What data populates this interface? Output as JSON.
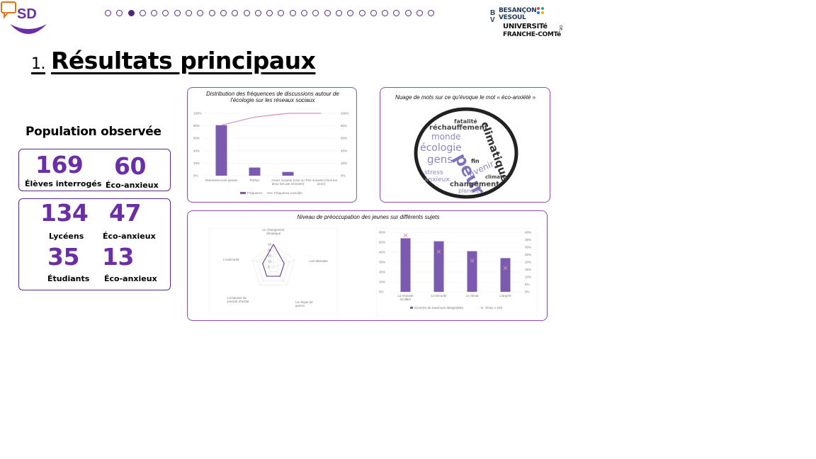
{
  "header": {
    "progress": {
      "total": 29,
      "current": 3
    },
    "logo_text": "SD",
    "university": {
      "line1": "BESANÇON",
      "line2": "VESOUL",
      "line3": "UNIVERSITé",
      "line4": "FRANCHE-COMTé",
      "de": "DE"
    }
  },
  "title": {
    "number": "1.",
    "text": "Résultats principaux"
  },
  "population": {
    "heading": "Population observée",
    "total": {
      "count": "169",
      "label": "Élèves interrogés",
      "anx_count": "60",
      "anx_label": "Éco-anxieux"
    },
    "lyceens": {
      "count": "134",
      "label": "Lycéens",
      "anx_count": "47",
      "anx_label": "Éco-anxieux"
    },
    "etudiants": {
      "count": "35",
      "label": "Étudiants",
      "anx_count": "13",
      "anx_label": "Éco-anxieux"
    }
  },
  "panels": {
    "freq_title": "Distribution des fréquences de discussions autour de l'écologie sur les réseaux sociaux",
    "cloud_title": "Nuage de mots sur ce qu'évoque le mot « éco-anxiété »",
    "preoc_title": "Niveau de préoccupation des jeunes sur différents sujets"
  },
  "wordcloud": {
    "words": [
      "fatalité",
      "réchauffement",
      "climatique",
      "monde",
      "écologie",
      "gens",
      "peur",
      "fin",
      "stress",
      "avenir",
      "anxieux",
      "climat",
      "changement",
      "planète"
    ]
  },
  "chart_data": [
    {
      "type": "bar",
      "title": "Distribution des fréquences de discussions autour de l'écologie sur les réseaux sociaux",
      "categories": [
        "Rarement voire jamais",
        "Parfois",
        "Assez souvent (Une ou deux fois par semaine)",
        "Très souvent (Tous les jours)"
      ],
      "series": [
        {
          "name": "Fréquence",
          "values": [
            81,
            13,
            6,
            0
          ]
        },
        {
          "name": "Fréquence cumulée",
          "values": [
            81,
            94,
            100,
            100
          ]
        }
      ],
      "ylim": [
        0,
        100
      ],
      "yticks": [
        "0%",
        "20%",
        "40%",
        "60%",
        "80%",
        "100%"
      ]
    },
    {
      "type": "radar",
      "axes": [
        "Le changement climatique",
        "Les attentats",
        "La risque de guerre",
        "La hausse du pouvoir d'achat",
        "L'insécurité"
      ],
      "values": [
        40,
        20,
        20,
        20,
        20
      ],
      "rticks": [
        "0",
        "10",
        "20",
        "30",
        "40"
      ]
    },
    {
      "type": "bar",
      "categories": [
        "La réussite scolaire",
        "La sécurité",
        "Le climat",
        "L'argent"
      ],
      "series": [
        {
          "name": "Score(% du maximum atteignable)",
          "values": [
            54,
            51,
            41,
            34
          ]
        },
        {
          "name": "Choix 1 (x0)",
          "values": [
            38,
            27,
            21,
            16
          ]
        }
      ],
      "ylim": [
        0,
        60
      ],
      "yticks_left": [
        "0%",
        "10%",
        "20%",
        "30%",
        "40%",
        "50%",
        "60%"
      ],
      "yticks_right": [
        "0%",
        "5%",
        "10%",
        "15%",
        "20%",
        "25%",
        "30%",
        "35%",
        "40%"
      ]
    }
  ],
  "colors": {
    "accent": "#6a2fa6",
    "border": "#8e4fb8",
    "bar": "#7b5bb0",
    "line": "#d98fb3"
  }
}
